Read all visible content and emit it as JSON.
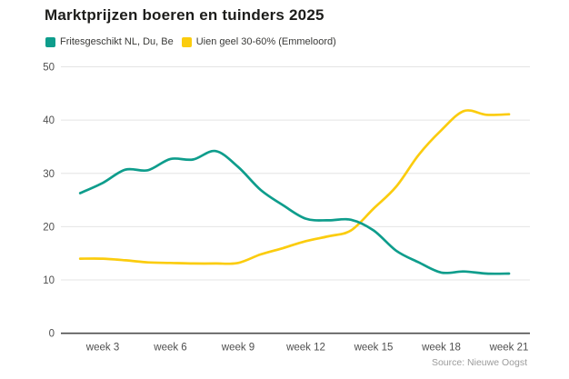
{
  "header": {
    "title": "Marktprijzen boeren en tuinders 2025"
  },
  "legend": {
    "items": [
      {
        "label": "Fritesgeschikt NL, Du, Be",
        "color": "#0e9d8c"
      },
      {
        "label": "Uien geel 30-60% (Emmeloord)",
        "color": "#fbcc0e"
      }
    ]
  },
  "footer": {
    "source": "Source: Nieuwe Oogst"
  },
  "chart_data": {
    "type": "line",
    "title": "Marktprijzen boeren en tuinders 2025",
    "xlabel": "",
    "ylabel": "",
    "x_unit": "week",
    "x": [
      2,
      3,
      4,
      5,
      6,
      7,
      8,
      9,
      10,
      11,
      12,
      13,
      14,
      15,
      16,
      17,
      18,
      19,
      20,
      21
    ],
    "series": [
      {
        "name": "Fritesgeschikt NL, Du, Be",
        "color": "#0e9d8c",
        "values": [
          26.3,
          28.2,
          30.7,
          30.6,
          32.7,
          32.6,
          34.2,
          31.2,
          26.9,
          24.0,
          21.5,
          21.2,
          21.3,
          19.3,
          15.5,
          13.3,
          11.4,
          11.6,
          11.2,
          11.2
        ]
      },
      {
        "name": "Uien geel 30-60% (Emmeloord)",
        "color": "#fbcc0e",
        "values": [
          14.0,
          14.0,
          13.7,
          13.3,
          13.2,
          13.1,
          13.1,
          13.2,
          14.8,
          16.0,
          17.3,
          18.2,
          19.3,
          23.4,
          27.5,
          33.5,
          38.1,
          41.7,
          41.0,
          41.1
        ]
      }
    ],
    "ylim": [
      0,
      50
    ],
    "y_ticks": [
      0,
      10,
      20,
      30,
      40,
      50
    ],
    "x_tick_values": [
      3,
      6,
      9,
      12,
      15,
      18,
      21
    ],
    "x_tick_labels": [
      "week 3",
      "week 6",
      "week 9",
      "week 12",
      "week 15",
      "week 18",
      "week 21"
    ],
    "grid": true,
    "legend_position": "top",
    "axis_label_color": "#4f4f4f",
    "grid_color": "#e4e4e4",
    "zero_line_color": "#4d4d4d"
  }
}
